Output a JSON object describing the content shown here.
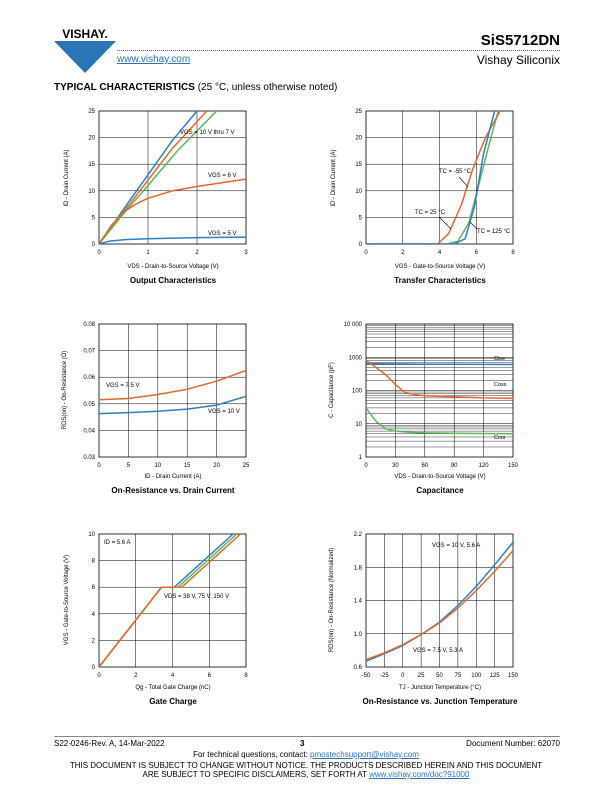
{
  "header": {
    "logo_text": "VISHAY.",
    "url": "www.vishay.com",
    "part_number": "SiS5712DN",
    "company": "Vishay Siliconix"
  },
  "section": {
    "title": "TYPICAL CHARACTERISTICS",
    "condition": "(25 °C, unless otherwise noted)"
  },
  "charts": {
    "output": {
      "caption": "Output Characteristics",
      "xlabel": "VDS - Drain-to-Source Voltage (V)",
      "ylabel": "ID - Drain Current (A)",
      "xticks": [
        "0",
        "1",
        "2",
        "3"
      ],
      "yticks": [
        "0",
        "5",
        "10",
        "15",
        "20",
        "25"
      ],
      "annotations": [
        "VGS = 10 V thru 7 V",
        "VGS = 6 V",
        "VGS = 5 V"
      ]
    },
    "transfer": {
      "caption": "Transfer Characteristics",
      "xlabel": "VGS - Gate-to-Source Voltage (V)",
      "ylabel": "ID - Drain Current (A)",
      "xticks": [
        "0",
        "2",
        "4",
        "6",
        "8"
      ],
      "yticks": [
        "0",
        "5",
        "10",
        "15",
        "20",
        "25"
      ],
      "annotations": [
        "TC = -55 °C",
        "TC = 25 °C",
        "TC = 125 °C"
      ]
    },
    "onres": {
      "caption": "On-Resistance vs. Drain Current",
      "xlabel": "ID - Drain Current (A)",
      "ylabel": "RDS(on) - On-Resistance (Ω)",
      "xticks": [
        "0",
        "5",
        "10",
        "15",
        "20",
        "25"
      ],
      "yticks": [
        "0.03",
        "0.04",
        "0.05",
        "0.06",
        "0.07",
        "0.08"
      ],
      "annotations": [
        "VGS = 7.5 V",
        "VGS = 10 V"
      ]
    },
    "capacitance": {
      "caption": "Capacitance",
      "xlabel": "VDS - Drain-to-Source Voltage (V)",
      "ylabel": "C - Capacitance (pF)",
      "xticks": [
        "0",
        "30",
        "60",
        "90",
        "120",
        "150"
      ],
      "yticks": [
        "1",
        "10",
        "100",
        "1000",
        "10 000"
      ],
      "annotations": [
        "Ciss",
        "Coss",
        "Crss"
      ]
    },
    "gate": {
      "caption": "Gate Charge",
      "xlabel": "Qg - Total Gate Charge (nC)",
      "ylabel": "VGS - Gate-to-Source Voltage (V)",
      "xticks": [
        "0",
        "2",
        "4",
        "6",
        "8"
      ],
      "yticks": [
        "0",
        "2",
        "4",
        "6",
        "8",
        "10"
      ],
      "annotations": [
        "ID = 5.6 A",
        "VDS = 38 V, 75 V, 150 V"
      ]
    },
    "onres_temp": {
      "caption": "On-Resistance vs. Junction Temperature",
      "xlabel": "TJ - Junction Temperature (°C)",
      "ylabel": "RDS(on) - On-Resistance (Normalized)",
      "xticks": [
        "-50",
        "-25",
        "0",
        "25",
        "50",
        "75",
        "100",
        "125",
        "150"
      ],
      "yticks": [
        "0.6",
        "1.0",
        "1.4",
        "1.8",
        "2.2"
      ],
      "annotations": [
        "VGS = 10 V, 5.6 A",
        "VGS = 7.5 V, 5.3 A"
      ]
    }
  },
  "chart_data": [
    {
      "type": "line",
      "title": "Output Characteristics",
      "xlabel": "VDS - Drain-to-Source Voltage (V)",
      "ylabel": "ID - Drain Current (A)",
      "xlim": [
        0,
        3
      ],
      "ylim": [
        0,
        25
      ],
      "series": [
        {
          "name": "VGS = 10 V",
          "color": "#2e7fc7",
          "x": [
            0,
            0.5,
            1,
            1.5,
            2
          ],
          "y": [
            0,
            6.5,
            13,
            19.5,
            25
          ]
        },
        {
          "name": "VGS = 7 V",
          "color": "#e8672a",
          "x": [
            0,
            0.5,
            1,
            1.5,
            2.2
          ],
          "y": [
            0,
            6,
            12,
            18,
            25
          ]
        },
        {
          "name": "VGS = 7 V",
          "color": "#59b85a",
          "x": [
            0,
            0.5,
            1,
            1.6,
            2.4
          ],
          "y": [
            0,
            5.7,
            11,
            17.5,
            25
          ]
        },
        {
          "name": "VGS = 6 V",
          "color": "#e8672a",
          "x": [
            0,
            0.25,
            0.5,
            0.75,
            1,
            1.5,
            2,
            2.5,
            3
          ],
          "y": [
            0,
            3.5,
            6,
            7.5,
            8.6,
            10,
            10.8,
            11.5,
            12.2
          ]
        },
        {
          "name": "VGS = 5 V",
          "color": "#2e7fc7",
          "x": [
            0,
            0.2,
            0.5,
            1,
            2,
            3
          ],
          "y": [
            0,
            0.5,
            0.8,
            1,
            1.2,
            1.3
          ]
        }
      ]
    },
    {
      "type": "line",
      "title": "Transfer Characteristics",
      "xlabel": "VGS - Gate-to-Source Voltage (V)",
      "ylabel": "ID - Drain Current (A)",
      "xlim": [
        0,
        8
      ],
      "ylim": [
        0,
        25
      ],
      "series": [
        {
          "name": "TC = -55 °C",
          "color": "#59b85a",
          "x": [
            0,
            4.4,
            5,
            5.6,
            6.2,
            6.8,
            7.2
          ],
          "y": [
            0,
            0,
            0.5,
            4,
            12,
            20,
            25
          ]
        },
        {
          "name": "TC = 25 °C",
          "color": "#e8672a",
          "x": [
            0,
            3.9,
            4.5,
            5.2,
            5.8,
            6.5,
            7.3
          ],
          "y": [
            0,
            0,
            2,
            7.5,
            14,
            20,
            25
          ]
        },
        {
          "name": "TC = 125 °C",
          "color": "#2e7fc7",
          "x": [
            0,
            4.8,
            5.4,
            5.9,
            6.4,
            7
          ],
          "y": [
            0,
            0,
            1,
            7,
            17,
            25
          ]
        }
      ]
    },
    {
      "type": "line",
      "title": "On-Resistance vs. Drain Current",
      "xlabel": "ID - Drain Current (A)",
      "ylabel": "RDS(on) - On-Resistance (Ω)",
      "xlim": [
        0,
        25
      ],
      "ylim": [
        0.03,
        0.08
      ],
      "series": [
        {
          "name": "VGS = 7.5 V",
          "color": "#e8672a",
          "x": [
            0,
            5,
            10,
            15,
            20,
            25
          ],
          "y": [
            0.0515,
            0.052,
            0.0535,
            0.0555,
            0.0585,
            0.0625
          ]
        },
        {
          "name": "VGS = 10 V",
          "color": "#2e7fc7",
          "x": [
            0,
            5,
            10,
            15,
            20,
            25
          ],
          "y": [
            0.0463,
            0.0467,
            0.0472,
            0.048,
            0.0495,
            0.0528
          ]
        }
      ]
    },
    {
      "type": "line",
      "title": "Capacitance",
      "xlabel": "VDS - Drain-to-Source Voltage (V)",
      "ylabel": "C - Capacitance (pF)",
      "xlim": [
        0,
        150
      ],
      "ylim": [
        1,
        10000
      ],
      "yscale": "log",
      "series": [
        {
          "name": "Ciss",
          "color": "#2e7fc7",
          "x": [
            0,
            30,
            60,
            90,
            120,
            150
          ],
          "y": [
            640,
            630,
            620,
            615,
            610,
            605
          ]
        },
        {
          "name": "Coss",
          "color": "#e8672a",
          "x": [
            0,
            10,
            20,
            30,
            40,
            50,
            60,
            90,
            120,
            150
          ],
          "y": [
            800,
            500,
            300,
            150,
            85,
            75,
            70,
            65,
            60,
            58
          ]
        },
        {
          "name": "Crss",
          "color": "#59b85a",
          "x": [
            0,
            10,
            20,
            30,
            45,
            60,
            90,
            120,
            150
          ],
          "y": [
            30,
            12,
            7,
            6,
            5.5,
            5.3,
            5.2,
            5.1,
            5
          ]
        }
      ]
    },
    {
      "type": "line",
      "title": "Gate Charge",
      "xlabel": "Qg - Total Gate Charge (nC)",
      "ylabel": "VGS - Gate-to-Source Voltage (V)",
      "xlim": [
        0,
        8
      ],
      "ylim": [
        0,
        10
      ],
      "series": [
        {
          "name": "VDS = 38 V",
          "color": "#2e7fc7",
          "x": [
            0,
            3.4,
            4.1,
            7.3
          ],
          "y": [
            0,
            6,
            6,
            10
          ]
        },
        {
          "name": "VDS = 75 V",
          "color": "#59b85a",
          "x": [
            0,
            3.4,
            4.3,
            7.5
          ],
          "y": [
            0,
            6,
            6,
            10
          ]
        },
        {
          "name": "VDS = 150 V",
          "color": "#e8672a",
          "x": [
            0,
            3.4,
            4.5,
            7.7
          ],
          "y": [
            0,
            6,
            6,
            10
          ]
        }
      ]
    },
    {
      "type": "line",
      "title": "On-Resistance vs. Junction Temperature",
      "xlabel": "TJ - Junction Temperature (°C)",
      "ylabel": "RDS(on) - On-Resistance (Normalized)",
      "xlim": [
        -50,
        150
      ],
      "ylim": [
        0.6,
        2.2
      ],
      "series": [
        {
          "name": "VGS = 10 V, 5.6 A",
          "color": "#2e7fc7",
          "x": [
            -50,
            -25,
            0,
            25,
            50,
            75,
            100,
            125,
            150
          ],
          "y": [
            0.67,
            0.76,
            0.86,
            0.99,
            1.14,
            1.34,
            1.57,
            1.83,
            2.1
          ]
        },
        {
          "name": "VGS = 7.5 V, 5.3 A",
          "color": "#e8672a",
          "x": [
            -50,
            -25,
            0,
            25,
            50,
            75,
            100,
            125,
            150
          ],
          "y": [
            0.69,
            0.77,
            0.87,
            0.99,
            1.13,
            1.31,
            1.52,
            1.75,
            2.0
          ]
        }
      ]
    }
  ],
  "footer": {
    "doc_rev": "S22-0246-Rev. A, 14-Mar-2022",
    "page": "3",
    "doc_number": "Document Number: 62070",
    "contact_prefix": "For technical questions, contact: ",
    "contact_email": "pmostechsupport@vishay.com",
    "disclaimer_line1": "THIS DOCUMENT IS SUBJECT TO CHANGE WITHOUT NOTICE. THE PRODUCTS DESCRIBED HEREIN AND THIS DOCUMENT",
    "disclaimer_line2": "ARE SUBJECT TO SPECIFIC DISCLAIMERS, SET FORTH AT ",
    "disclaimer_url": "www.vishay.com/doc?91000"
  }
}
